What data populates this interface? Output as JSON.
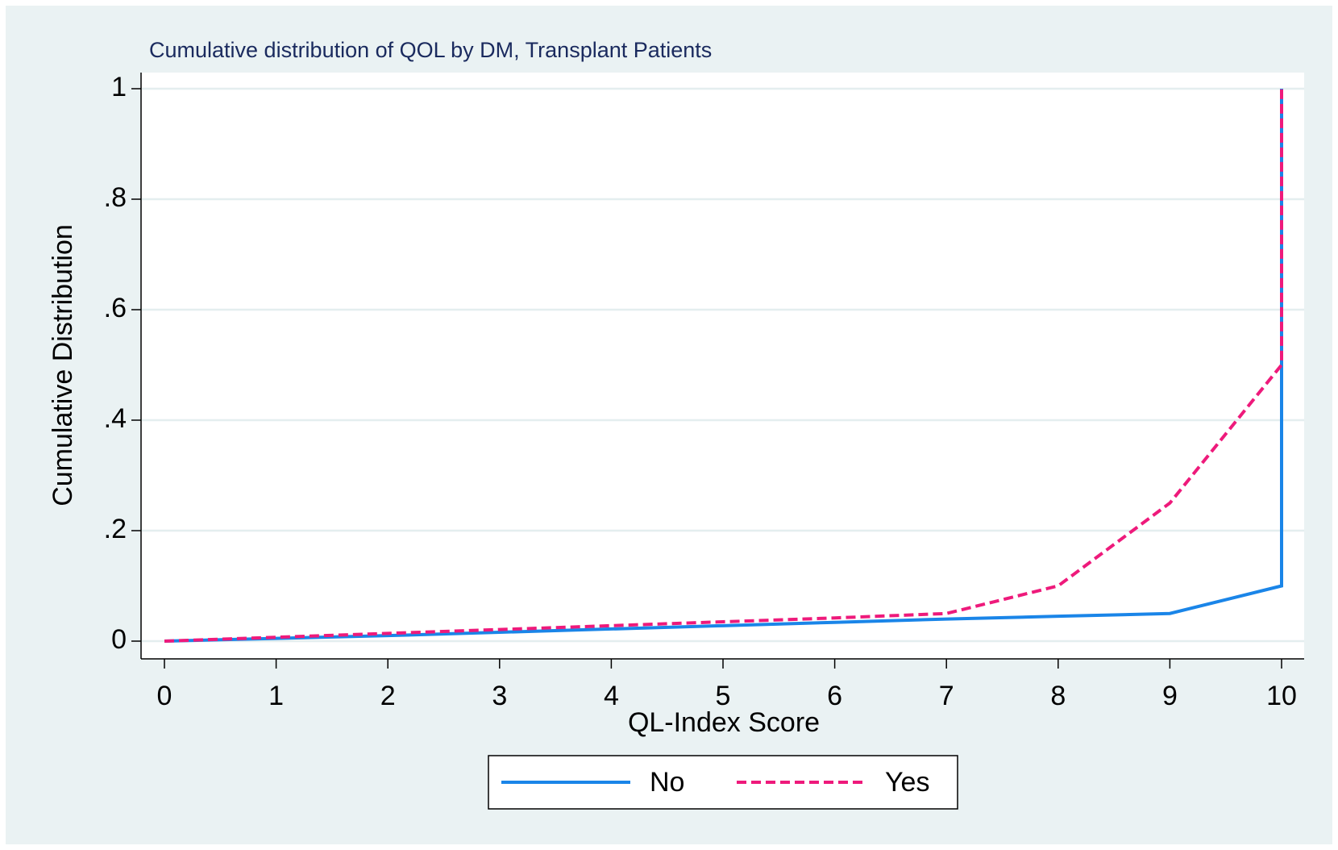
{
  "chart_data": {
    "type": "line",
    "title": "Cumulative distribution of QOL by DM, Transplant Patients",
    "xlabel": "QL-Index Score",
    "ylabel": "Cumulative Distribution",
    "x": [
      0,
      1,
      2,
      3,
      4,
      5,
      6,
      7,
      8,
      9,
      10,
      10
    ],
    "series": [
      {
        "name": "No",
        "color": "#1a85e8",
        "dash": false,
        "values": [
          0,
          0.005,
          0.01,
          0.016,
          0.022,
          0.028,
          0.034,
          0.04,
          0.045,
          0.05,
          0.1,
          1
        ]
      },
      {
        "name": "Yes",
        "color": "#ee1a7b",
        "dash": true,
        "values": [
          0,
          0.007,
          0.014,
          0.021,
          0.028,
          0.035,
          0.042,
          0.05,
          0.1,
          0.25,
          0.5,
          1
        ]
      }
    ],
    "xlim": [
      0,
      10
    ],
    "xticks": [
      0,
      1,
      2,
      3,
      4,
      5,
      6,
      7,
      8,
      9,
      10
    ],
    "ylim": [
      0,
      1
    ],
    "yticks": [
      0,
      {
        "value": 0.2,
        "label": ".2"
      },
      {
        "value": 0.4,
        "label": ".4"
      },
      {
        "value": 0.6,
        "label": ".6"
      },
      {
        "value": 0.8,
        "label": ".8"
      },
      1
    ],
    "grid": true,
    "legend": "bottom"
  }
}
